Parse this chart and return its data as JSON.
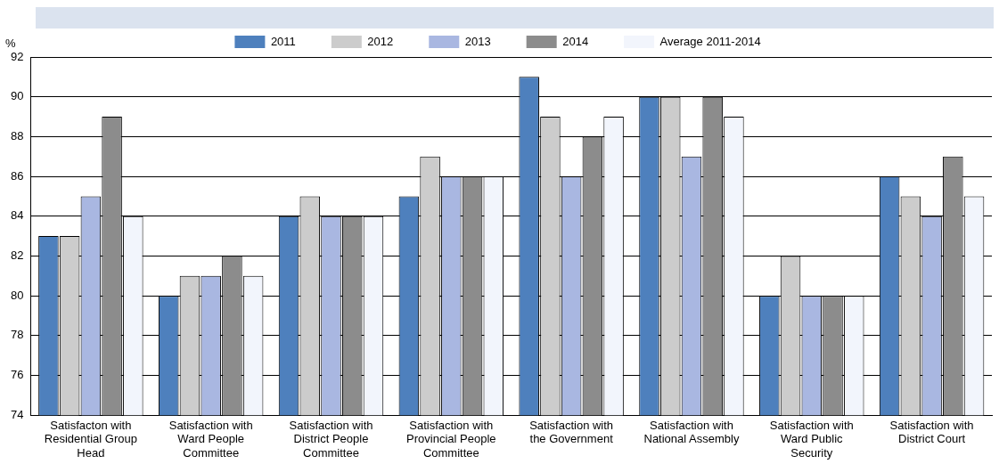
{
  "chart_data": {
    "type": "bar",
    "ylabel": "%",
    "categories": [
      "Satisfacton with Residential Group Head",
      "Satisfaction with Ward People Committee",
      "Satisfaction with District People Committee",
      "Satisfaction with Provincial People Committee",
      "Satisfaction with the Government",
      "Satisfaction with National Assembly",
      "Satisfaction with Ward Public Security",
      "Satisfaction with District Court"
    ],
    "series": [
      {
        "name": "2011",
        "color": "#4e80bd",
        "values": [
          83,
          80,
          84,
          85,
          91,
          90,
          80,
          86
        ]
      },
      {
        "name": "2012",
        "color": "#cccccc",
        "values": [
          83,
          81,
          85,
          87,
          89,
          90,
          82,
          85
        ]
      },
      {
        "name": "2013",
        "color": "#a9b7e1",
        "values": [
          85,
          81,
          84,
          86,
          86,
          87,
          80,
          84
        ]
      },
      {
        "name": "2014",
        "color": "#8c8c8c",
        "values": [
          89,
          82,
          84,
          86,
          88,
          90,
          80,
          87
        ]
      },
      {
        "name": "Average 2011-2014",
        "color": "#f2f5fc",
        "values": [
          84,
          81,
          84,
          86,
          89,
          89,
          80,
          85
        ]
      }
    ],
    "ylim": [
      74,
      92
    ],
    "yticks": [
      74,
      76,
      78,
      80,
      82,
      84,
      86,
      88,
      90,
      92
    ],
    "grid": "y",
    "legend": "top"
  }
}
